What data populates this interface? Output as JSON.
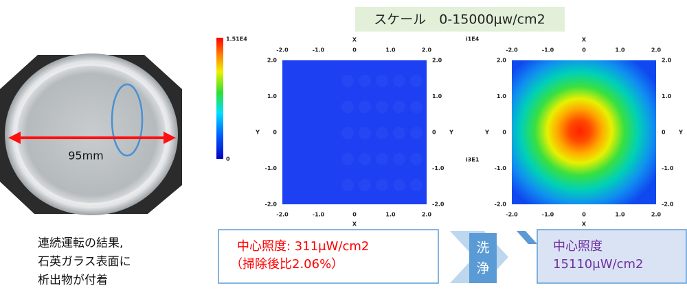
{
  "scale_label": "スケール　0-15000μw/cm2",
  "photo": {
    "dimension": "95mm",
    "caption": [
      "連続運転の結果,",
      "石英ガラス表面に",
      "析出物が付着"
    ]
  },
  "colorbar": {
    "max_label": "1.51E4",
    "min_label": "0"
  },
  "clipped_labels": [
    "i1E4",
    "i3E1"
  ],
  "heatmaps": [
    {
      "x_label": "X",
      "y_label": "Y",
      "ticks": [
        "-2.0",
        "-1.0",
        "0",
        "1.0",
        "2.0"
      ]
    },
    {
      "x_label": "X",
      "y_label": "Y",
      "ticks": [
        "-2.0",
        "-1.0",
        "0",
        "1.0",
        "2.0"
      ]
    }
  ],
  "before_box": {
    "lines": [
      "中心照度: 311μW/cm2",
      "（掃除後比2.06%）"
    ]
  },
  "wash_label": [
    "洗",
    "浄"
  ],
  "after_box": {
    "lines": [
      "中心照度",
      "15110μW/cm2"
    ]
  }
}
